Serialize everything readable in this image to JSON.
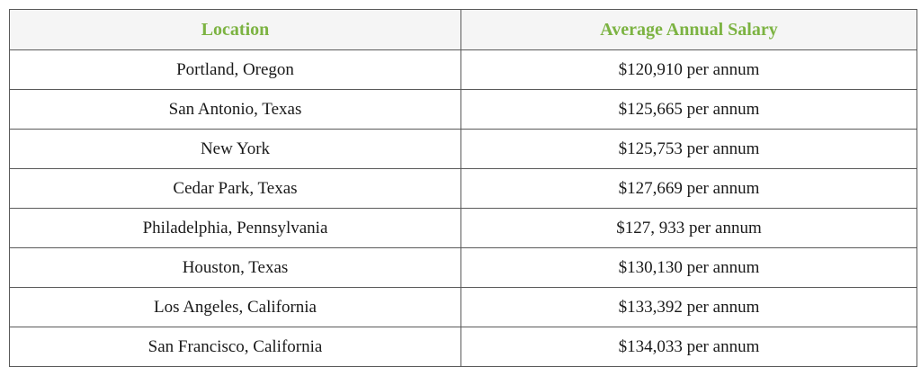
{
  "table": {
    "header": [
      "Location",
      "Average Annual Salary"
    ],
    "rows": [
      [
        "Portland, Oregon",
        "$120,910 per annum"
      ],
      [
        "San Antonio, Texas",
        "$125,665 per annum"
      ],
      [
        "New York",
        "$125,753 per annum"
      ],
      [
        "Cedar Park, Texas",
        "$127,669 per annum"
      ],
      [
        "Philadelphia, Pennsylvania",
        "$127, 933 per annum"
      ],
      [
        "Houston, Texas",
        "$130,130 per annum"
      ],
      [
        "Los Angeles, California",
        "$133,392 per annum"
      ],
      [
        "San Francisco, California",
        "$134,033 per annum"
      ]
    ]
  }
}
